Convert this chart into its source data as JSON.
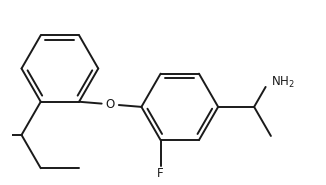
{
  "bg_color": "#ffffff",
  "line_color": "#1a1a1a",
  "line_width": 1.4,
  "font_size_label": 8.5,
  "figsize": [
    3.26,
    1.85
  ],
  "dpi": 100,
  "xlim": [
    -0.5,
    5.8
  ],
  "ylim": [
    -1.6,
    2.2
  ]
}
